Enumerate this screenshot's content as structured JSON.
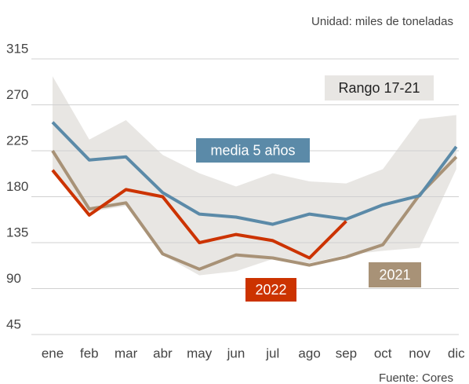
{
  "chart_data": {
    "type": "line",
    "subtitle": "Unidad: miles de toneladas",
    "source": "Fuente: Cores",
    "categories": [
      "ene",
      "feb",
      "mar",
      "abr",
      "may",
      "jun",
      "jul",
      "ago",
      "sep",
      "oct",
      "nov",
      "dic"
    ],
    "ylim": [
      45,
      315
    ],
    "yticks": [
      45,
      90,
      135,
      180,
      225,
      270,
      315
    ],
    "grid": true,
    "range": {
      "name": "Rango 17-21",
      "color": "#e8e6e3",
      "upper": [
        298,
        236,
        255,
        221,
        203,
        190,
        203,
        195,
        193,
        207,
        256,
        260
      ],
      "lower": [
        203,
        165,
        171,
        123,
        103,
        107,
        119,
        115,
        123,
        127,
        130,
        207
      ]
    },
    "series": [
      {
        "name": "2021",
        "color": "#a89277",
        "values": [
          225,
          168,
          174,
          124,
          109,
          123,
          120,
          113,
          121,
          133,
          182,
          219
        ]
      },
      {
        "name": "media 5 años",
        "color": "#5b8aa8",
        "values": [
          253,
          216,
          219,
          184,
          163,
          160,
          153,
          163,
          158,
          172,
          181,
          229
        ]
      },
      {
        "name": "2022",
        "color": "#cc3300",
        "values": [
          206,
          162,
          187,
          180,
          135,
          143,
          137,
          120,
          156,
          null,
          null,
          null
        ]
      }
    ]
  }
}
